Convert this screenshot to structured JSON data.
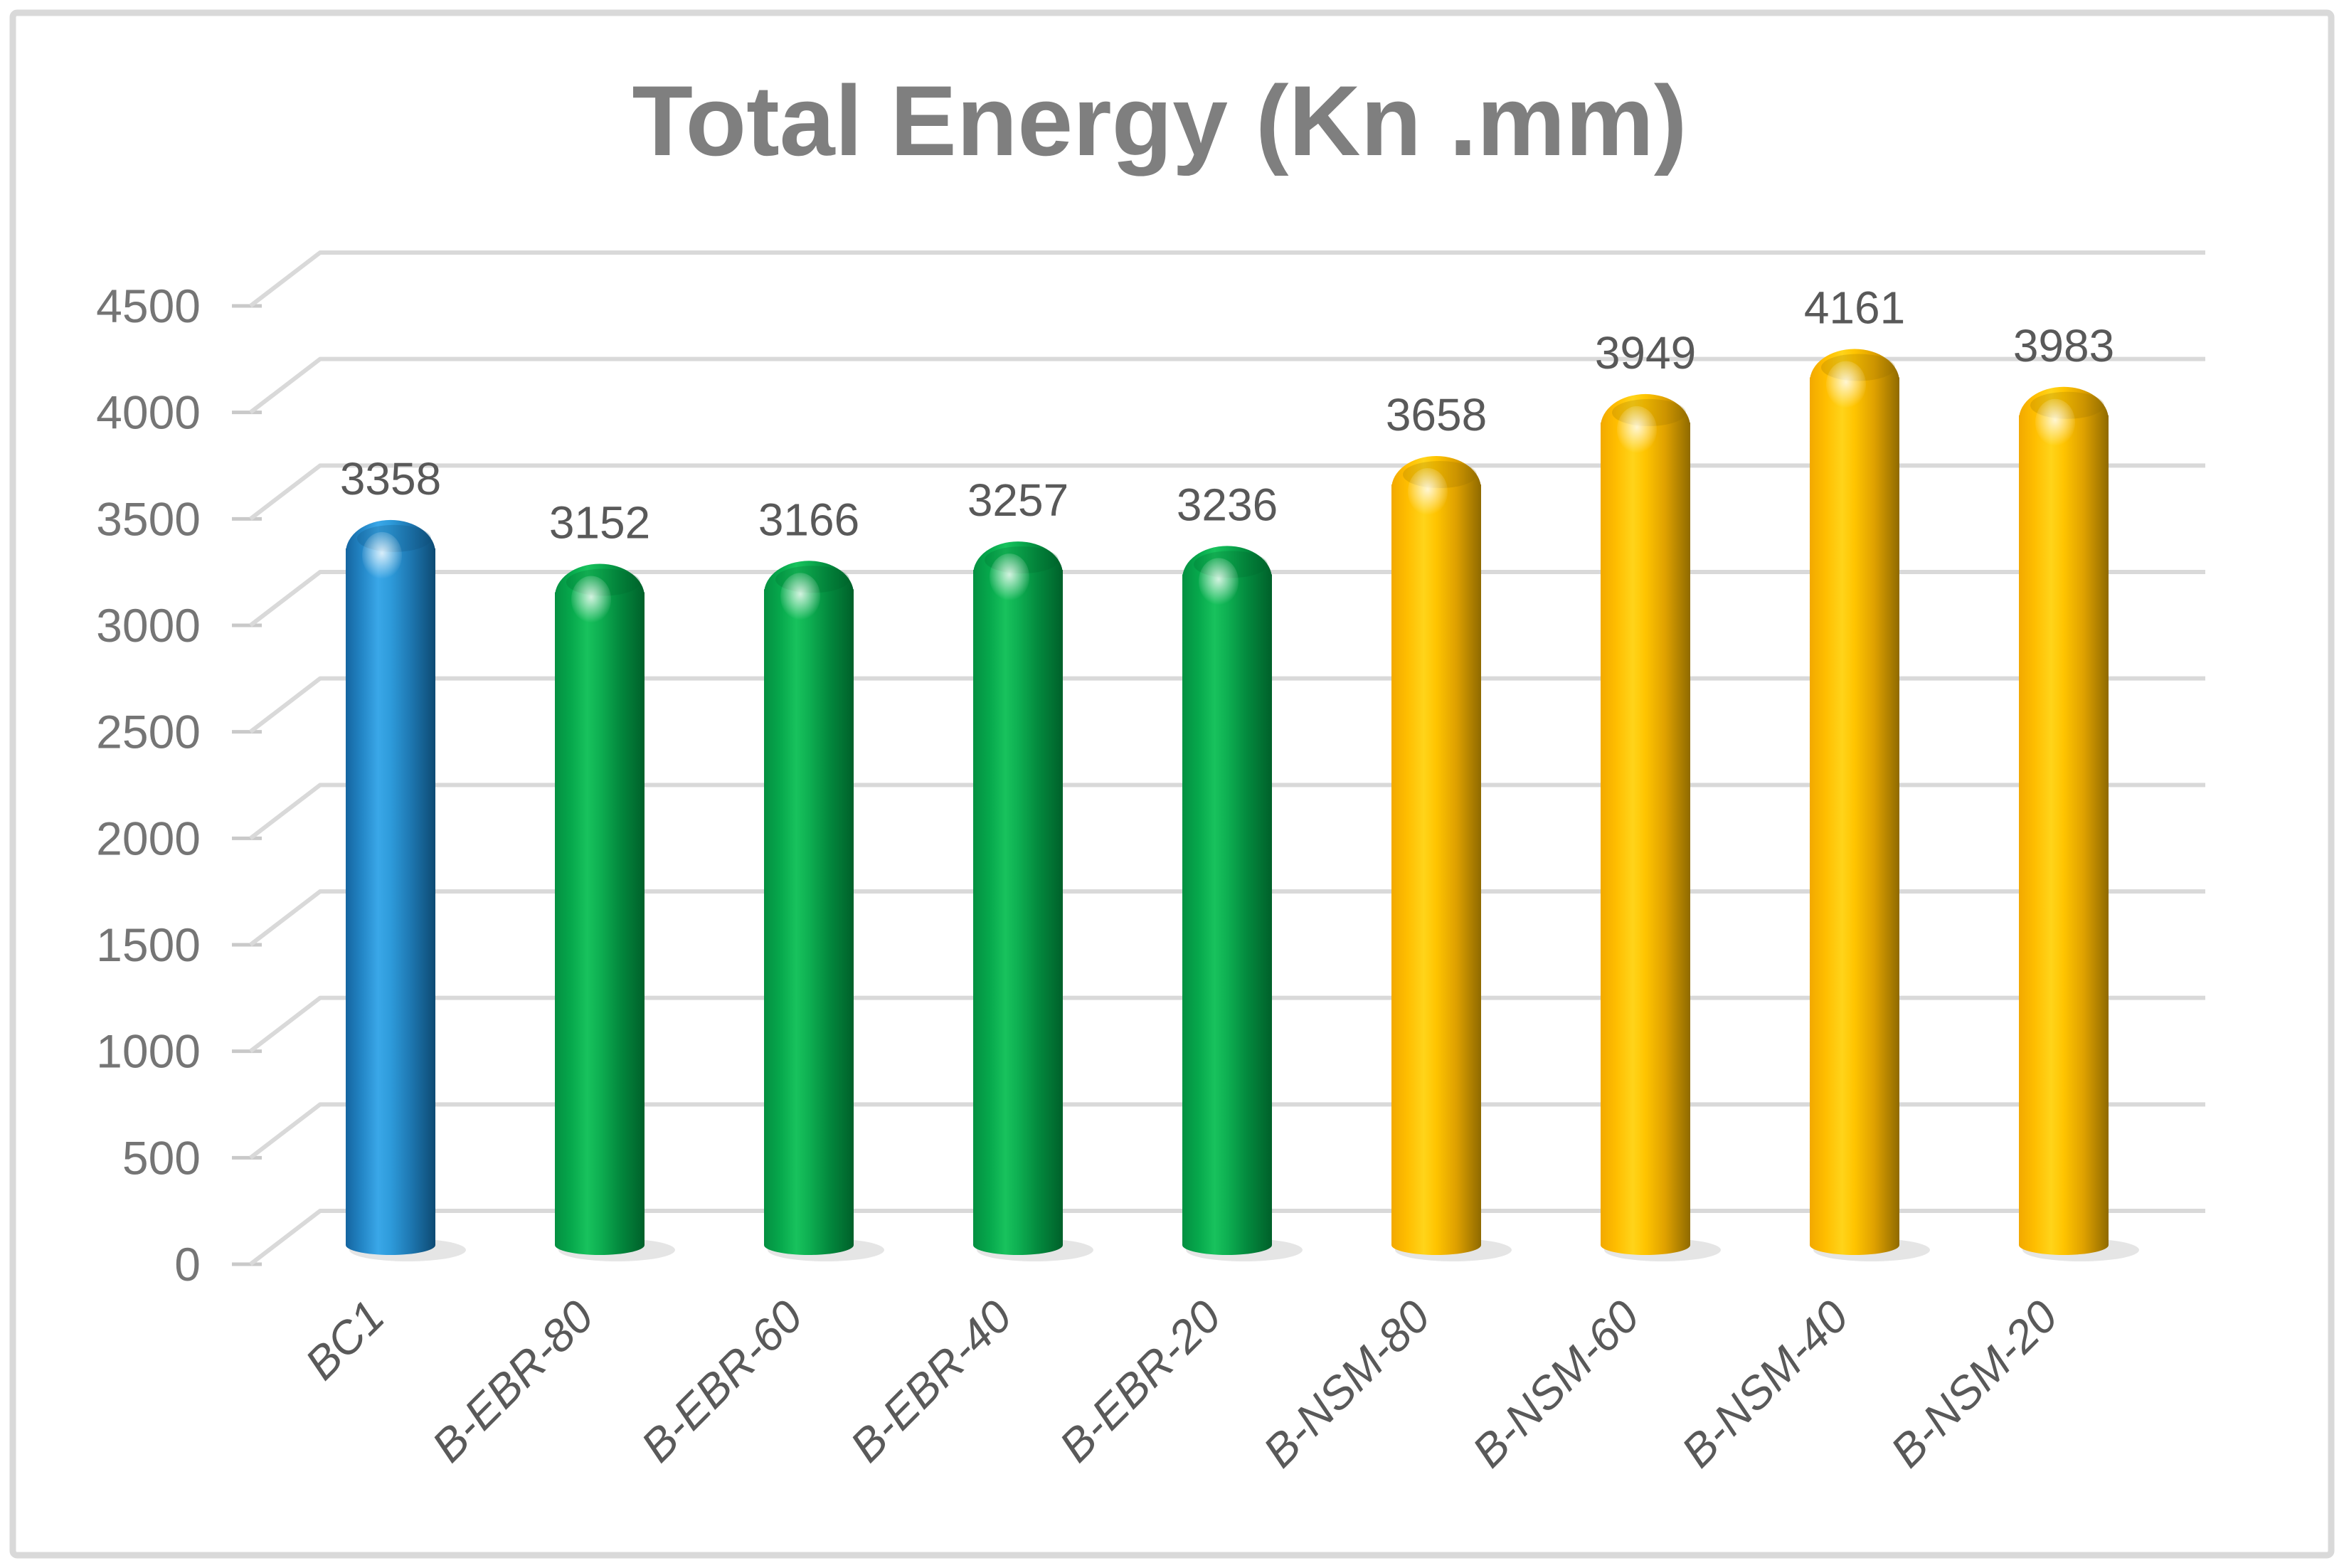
{
  "chart_data": {
    "type": "bar",
    "subtype": "cylinder-3d",
    "title": "Total Energy (Kn .mm)",
    "categories": [
      "BC1",
      "B-EBR-80",
      "B-EBR-60",
      "B-EBR-40",
      "B-EBR-20",
      "B-NSM-80",
      "B-NSM-60",
      "B-NSM-40",
      "B-NSM-20"
    ],
    "values": [
      3358,
      3152,
      3166,
      3257,
      3236,
      3658,
      3949,
      4161,
      3983
    ],
    "data_labels": [
      "3358",
      "3152",
      "3166",
      "3257",
      "3236",
      "3658",
      "3949",
      "4161",
      "3983"
    ],
    "bar_colors": [
      "blue",
      "green",
      "green",
      "green",
      "green",
      "gold",
      "gold",
      "gold",
      "gold"
    ],
    "palette": {
      "blue": {
        "base": "#2E9BDB",
        "gradient": [
          "#1565A0",
          "#2386C6",
          "#3AA7E8",
          "#2E9BDB",
          "#1E78B2",
          "#0D4A73"
        ]
      },
      "green": {
        "base": "#0EB052",
        "gradient": [
          "#049041",
          "#06A84C",
          "#18C25D",
          "#0EB052",
          "#038A3E",
          "#00602A"
        ]
      },
      "gold": {
        "base": "#FFC400",
        "gradient": [
          "#F2A900",
          "#FFBE00",
          "#FFD41A",
          "#FFC400",
          "#DFA100",
          "#8F6A00"
        ]
      }
    },
    "xlabel": "",
    "ylabel": "",
    "ylim": [
      0,
      4500
    ],
    "ytick_step": 500,
    "yticks": [
      "0",
      "500",
      "1000",
      "1500",
      "2000",
      "2500",
      "3000",
      "3500",
      "4000",
      "4500"
    ],
    "grid": true,
    "legend_position": "none",
    "style_colors": {
      "title_text": "#7F7F7F",
      "axis_text": "#757575",
      "label_text": "#595959",
      "gridline": "#D9D9D9",
      "tick": "#C9C9C9",
      "frame_border": "#D9D9D9",
      "background": "#FFFFFF"
    }
  }
}
